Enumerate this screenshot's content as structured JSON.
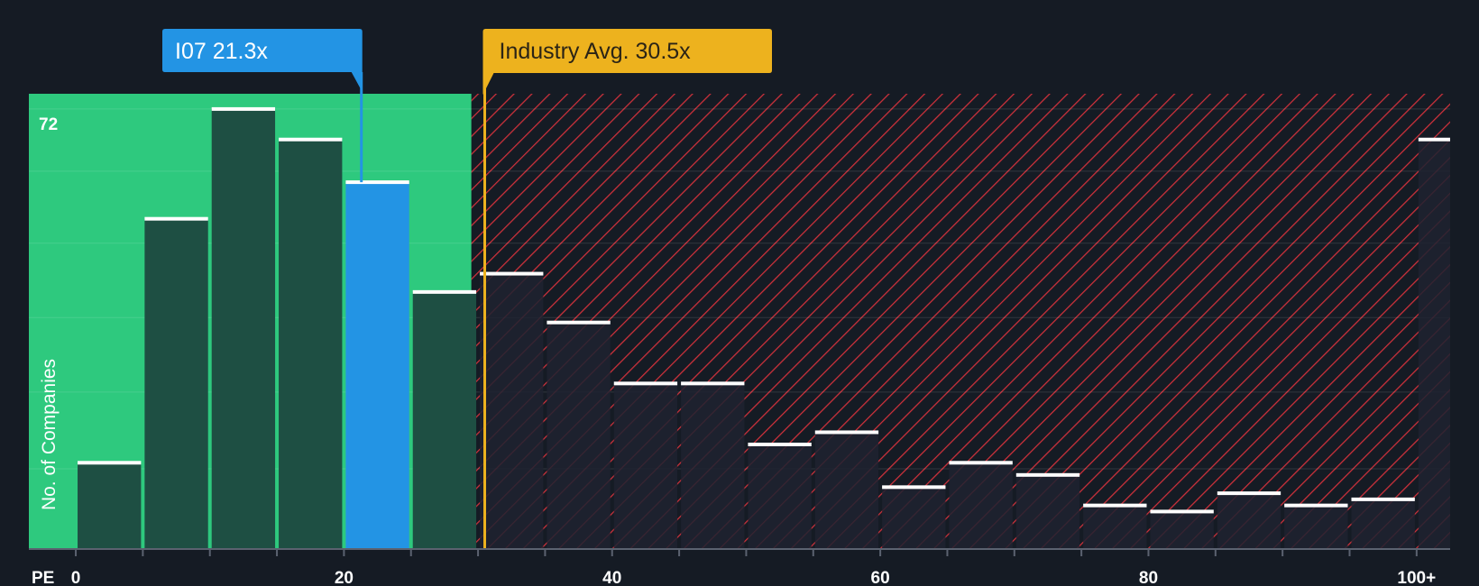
{
  "chart_data": {
    "type": "bar",
    "ylabel": "No. of Companies",
    "xlabel": "PE",
    "y_top_label": "72",
    "bin_width": 5,
    "xlim": [
      -3.5,
      102.5
    ],
    "ylim": [
      0,
      74.5
    ],
    "x_ticks": [
      {
        "value": 0,
        "label": "0"
      },
      {
        "value": 20,
        "label": "20"
      },
      {
        "value": 40,
        "label": "40"
      },
      {
        "value": 60,
        "label": "60"
      },
      {
        "value": 80,
        "label": "80"
      },
      {
        "value": 100,
        "label": "100+"
      }
    ],
    "bins": [
      {
        "start": 0,
        "count": 14
      },
      {
        "start": 5,
        "count": 54
      },
      {
        "start": 10,
        "count": 72
      },
      {
        "start": 15,
        "count": 67
      },
      {
        "start": 20,
        "count": 60
      },
      {
        "start": 25,
        "count": 42
      },
      {
        "start": 30,
        "count": 45
      },
      {
        "start": 35,
        "count": 37
      },
      {
        "start": 40,
        "count": 27
      },
      {
        "start": 45,
        "count": 27
      },
      {
        "start": 50,
        "count": 17
      },
      {
        "start": 55,
        "count": 19
      },
      {
        "start": 60,
        "count": 10
      },
      {
        "start": 65,
        "count": 14
      },
      {
        "start": 70,
        "count": 12
      },
      {
        "start": 75,
        "count": 7
      },
      {
        "start": 80,
        "count": 6
      },
      {
        "start": 85,
        "count": 9
      },
      {
        "start": 90,
        "count": 7
      },
      {
        "start": 95,
        "count": 8
      },
      {
        "start": 100,
        "count": 67
      }
    ],
    "highlight_bin_start": 20,
    "company": {
      "label": "I07 21.3x",
      "value": 21.3
    },
    "industry_avg": {
      "label": "Industry Avg. 30.5x",
      "value": 30.5
    },
    "fair_zone_end": 29.5,
    "colors": {
      "background": "#151b24",
      "fair_zone": "#2ec97e",
      "bar": "#1e4f43",
      "highlight_bar": "#2394e4",
      "overvalued_bar": "#1e2230",
      "overvalued_hatch": "#d0313b",
      "bar_cap": "#ffffff",
      "company_callout": "#2394e4",
      "industry_callout": "#edb21e",
      "industry_text": "#2b2416"
    }
  }
}
